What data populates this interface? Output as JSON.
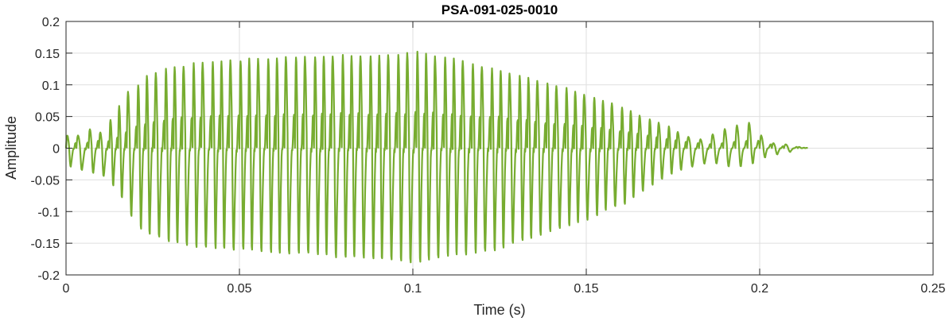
{
  "chart_data": {
    "type": "line",
    "title": "PSA-091-025-0010",
    "xlabel": "Time (s)",
    "ylabel": "Amplitude",
    "xlim": [
      0,
      0.25
    ],
    "ylim": [
      -0.2,
      0.2
    ],
    "grid": true,
    "x_ticks": [
      0,
      0.05,
      0.1,
      0.15,
      0.2,
      0.25
    ],
    "x_tick_labels": [
      "0",
      "0.05",
      "0.1",
      "0.15",
      "0.2",
      "0.25"
    ],
    "y_ticks": [
      -0.2,
      -0.15,
      -0.1,
      -0.05,
      0,
      0.05,
      0.1,
      0.15,
      0.2
    ],
    "y_tick_labels": [
      "-0.2",
      "-0.15",
      "-0.1",
      "-0.05",
      "0",
      "0.05",
      "0.1",
      "0.15",
      "0.2"
    ],
    "color": "#77AC30",
    "series": [
      {
        "values_note": "",
        "x": [
          0,
          0.003,
          0.0065,
          0.0095,
          0.0125,
          0.015,
          0.0175,
          0.0205,
          0.023,
          0.0255,
          0.0285,
          0.031,
          0.0335,
          0.0365,
          0.039,
          0.042,
          0.0445,
          0.047,
          0.05,
          0.0525,
          0.055,
          0.058,
          0.0605,
          0.063,
          0.066,
          0.0685,
          0.0715,
          0.074,
          0.0765,
          0.0795,
          0.082,
          0.0845,
          0.0875,
          0.09,
          0.0925,
          0.0955,
          0.098,
          0.101,
          0.1035,
          0.106,
          0.109,
          0.1115,
          0.114,
          0.117,
          0.1195,
          0.1225,
          0.125,
          0.1275,
          0.1305,
          0.133,
          0.1355,
          0.1385,
          0.141,
          0.144,
          0.1465,
          0.149,
          0.152,
          0.1545,
          0.157,
          0.16,
          0.1625,
          0.165,
          0.168,
          0.1705,
          0.1735,
          0.176,
          0.179,
          0.1825,
          0.186,
          0.1895,
          0.193,
          0.1965,
          0.2,
          0.2035,
          0.207,
          0.211
        ],
        "peaks": [
          0.02,
          0.02,
          0.03,
          0.025,
          0.044,
          0.066,
          0.088,
          0.1,
          0.115,
          0.12,
          0.125,
          0.128,
          0.13,
          0.133,
          0.134,
          0.136,
          0.137,
          0.138,
          0.139,
          0.14,
          0.141,
          0.142,
          0.143,
          0.144,
          0.145,
          0.145,
          0.145,
          0.146,
          0.146,
          0.146,
          0.146,
          0.146,
          0.147,
          0.147,
          0.147,
          0.148,
          0.149,
          0.152,
          0.148,
          0.145,
          0.142,
          0.14,
          0.137,
          0.134,
          0.13,
          0.126,
          0.122,
          0.118,
          0.114,
          0.11,
          0.106,
          0.102,
          0.098,
          0.094,
          0.09,
          0.085,
          0.08,
          0.075,
          0.07,
          0.065,
          0.058,
          0.052,
          0.046,
          0.04,
          0.034,
          0.026,
          0.018,
          0.014,
          0.022,
          0.03,
          0.036,
          0.04,
          0.02,
          0.008,
          0.006,
          0.002
        ],
        "troughs": [
          -0.03,
          -0.035,
          -0.04,
          -0.045,
          -0.06,
          -0.08,
          -0.11,
          -0.13,
          -0.14,
          -0.145,
          -0.15,
          -0.155,
          -0.158,
          -0.16,
          -0.161,
          -0.162,
          -0.163,
          -0.164,
          -0.165,
          -0.166,
          -0.167,
          -0.168,
          -0.169,
          -0.17,
          -0.171,
          -0.172,
          -0.174,
          -0.175,
          -0.176,
          -0.177,
          -0.178,
          -0.179,
          -0.18,
          -0.181,
          -0.182,
          -0.183,
          -0.184,
          -0.185,
          -0.18,
          -0.178,
          -0.176,
          -0.174,
          -0.172,
          -0.17,
          -0.168,
          -0.165,
          -0.16,
          -0.155,
          -0.15,
          -0.145,
          -0.14,
          -0.135,
          -0.13,
          -0.125,
          -0.12,
          -0.115,
          -0.11,
          -0.1,
          -0.095,
          -0.09,
          -0.08,
          -0.07,
          -0.06,
          -0.05,
          -0.042,
          -0.035,
          -0.03,
          -0.025,
          -0.025,
          -0.03,
          -0.03,
          -0.025,
          -0.015,
          -0.01,
          -0.006,
          0.0
        ]
      }
    ]
  }
}
